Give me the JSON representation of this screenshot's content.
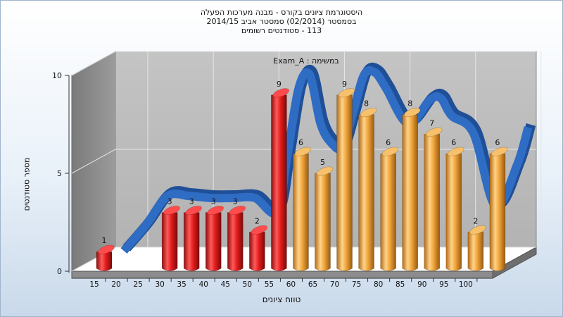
{
  "header": {
    "line1": "היסטוגרמת ציונים בקורס - מבנה מערכות הפעלה",
    "line2": "בסמסטר  (02/2014)  סמסטר אביב 2014/15",
    "line3": "113 - סטודנטים רשומים"
  },
  "chart_data": {
    "type": "bar",
    "title": "היסטוגרמת ציונים בקורס - מבנה מערכות הפעלה",
    "xlabel": "טווח ציונים",
    "ylabel": "מספר סטודנטים",
    "annotation": "Exam_A : במשימה",
    "ylim": [
      0,
      10
    ],
    "yticks": [
      0,
      5,
      10
    ],
    "x_tick_labels": [
      "15",
      "20",
      "25",
      "30",
      "35",
      "40",
      "45",
      "50",
      "55",
      "60",
      "65",
      "70",
      "75",
      "80",
      "85",
      "90",
      "95",
      "100"
    ],
    "bars": [
      {
        "x": 15,
        "value": 1,
        "color": "#e02a2a"
      },
      {
        "x": 30,
        "value": 3,
        "color": "#e02a2a"
      },
      {
        "x": 35,
        "value": 3,
        "color": "#e02a2a"
      },
      {
        "x": 40,
        "value": 3,
        "color": "#e02a2a"
      },
      {
        "x": 45,
        "value": 3,
        "color": "#e02a2a"
      },
      {
        "x": 50,
        "value": 2,
        "color": "#e02a2a"
      },
      {
        "x": 55,
        "value": 9,
        "color": "#e02a2a"
      },
      {
        "x": 60,
        "value": 6,
        "color": "#f0a63c"
      },
      {
        "x": 65,
        "value": 5,
        "color": "#f0a63c"
      },
      {
        "x": 70,
        "value": 9,
        "color": "#f0a63c"
      },
      {
        "x": 75,
        "value": 8,
        "color": "#f0a63c"
      },
      {
        "x": 80,
        "value": 6,
        "color": "#f0a63c"
      },
      {
        "x": 85,
        "value": 8,
        "color": "#f0a63c"
      },
      {
        "x": 90,
        "value": 7,
        "color": "#f0a63c"
      },
      {
        "x": 95,
        "value": 6,
        "color": "#f0a63c"
      },
      {
        "x": 100,
        "value": 2,
        "color": "#f0a63c"
      },
      {
        "x": 105,
        "value": 6,
        "color": "#f0a63c"
      }
    ],
    "curve": {
      "x": [
        15,
        20,
        25,
        30,
        35,
        40,
        45,
        50,
        52.5,
        55,
        57.5,
        60,
        62.5,
        65,
        67.5,
        70,
        72.5,
        75,
        80,
        85,
        87.5,
        90,
        95,
        100,
        105,
        107.5
      ],
      "values": [
        0.5,
        1.8,
        3.3,
        3.3,
        3.2,
        3.2,
        3.2,
        2.5,
        5.5,
        8.8,
        9.5,
        7.0,
        6.0,
        5.8,
        7.6,
        9.5,
        9.6,
        8.8,
        7.0,
        8.2,
        8.3,
        7.4,
        6.5,
        2.8,
        4.9,
        6.8
      ],
      "color": "#2f6cc4"
    }
  }
}
